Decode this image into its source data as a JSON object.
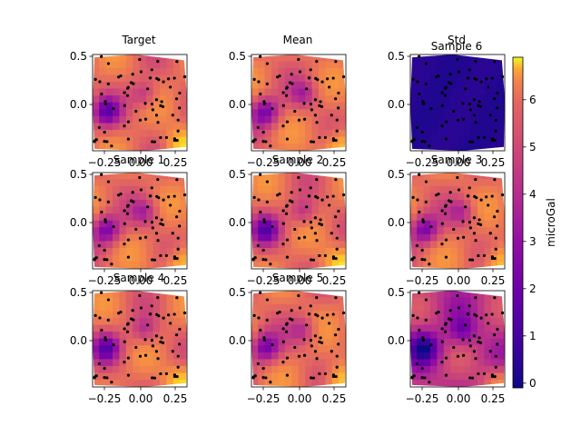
{
  "chart_data": {
    "type": "heatmap",
    "colormap": "plasma",
    "colorbar": {
      "label": "microGal",
      "vmin": -0.1,
      "vmax": 6.9,
      "ticks": [
        "0",
        "1",
        "2",
        "3",
        "4",
        "5",
        "6"
      ]
    },
    "xticks": [
      "−0.25",
      "0.00",
      "0.25"
    ],
    "yticks": [
      "0.5",
      "0.0"
    ],
    "panels": [
      {
        "title": "Target"
      },
      {
        "title": "Mean"
      },
      {
        "title": "Std"
      },
      {
        "title": "Sample 1"
      },
      {
        "title": "Sample 2"
      },
      {
        "title": "Sample 3"
      },
      {
        "title": "Sample 4"
      },
      {
        "title": "Sample 5"
      },
      {
        "title": "Sample 6"
      }
    ]
  }
}
